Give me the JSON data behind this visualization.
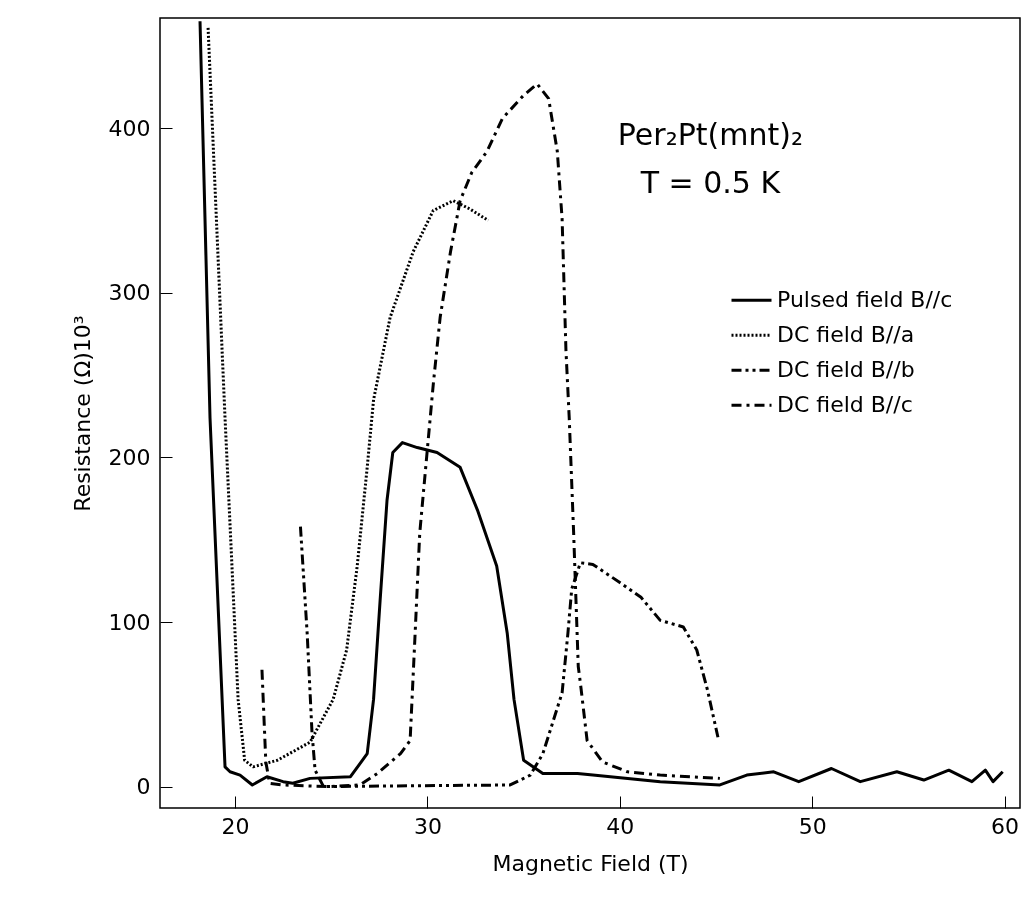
{
  "chart_data": {
    "type": "line",
    "xlabel": "Magnetic Field (T)",
    "ylabel": "Resistance (Ω)10³",
    "annotations": [
      "Per₂Pt(mnt)₂",
      "T = 0.5 K"
    ],
    "xlim": [
      16.1,
      60.8
    ],
    "xticks": [
      20,
      30,
      40,
      50,
      60
    ],
    "ylim": [
      -13,
      467
    ],
    "yticks": [
      0,
      100,
      200,
      300,
      400
    ],
    "legend": "top right",
    "grid": false,
    "series": [
      {
        "name": "Pulsed field B//c",
        "color": "#000000",
        "line_style": "solid",
        "x": [
          18.18,
          18.7,
          19.48,
          19.74,
          20.26,
          20.9,
          21.66,
          22.5,
          23.0,
          23.9,
          26.0,
          26.87,
          27.2,
          27.54,
          27.9,
          28.2,
          28.7,
          29.47,
          30.5,
          31.7,
          32.6,
          33.6,
          34.15,
          34.5,
          35.0,
          36.0,
          37.8,
          38.6,
          42.1,
          45.2,
          46.6,
          48.0,
          49.3,
          51.0,
          52.5,
          54.4,
          55.8,
          57.1,
          58.3,
          59.0,
          59.4,
          59.9
        ],
        "values": [
          465,
          224,
          12,
          9,
          7,
          1,
          6,
          3,
          2,
          5,
          6,
          20,
          53,
          113,
          174,
          203,
          209,
          206,
          203,
          194,
          168,
          134,
          93,
          53,
          16,
          8,
          8,
          7,
          3,
          1,
          7,
          9,
          3,
          11,
          3,
          9,
          4,
          10,
          3,
          10,
          3,
          9
        ]
      },
      {
        "name": "DC field B//a",
        "color": "#000000",
        "line_style": "dotted",
        "x": [
          18.6,
          19.48,
          19.84,
          20.16,
          20.5,
          20.94,
          22.2,
          23.9,
          25.1,
          25.8,
          26.35,
          26.87,
          27.2,
          28.06,
          29.26,
          30.3,
          31.34,
          32.2,
          33.16
        ],
        "values": [
          461,
          224,
          134,
          53,
          16,
          12,
          16,
          27,
          53,
          83,
          134,
          194,
          235,
          285,
          325,
          350,
          356,
          351,
          344
        ]
      },
      {
        "name": "DC field B//b",
        "color": "#000000",
        "line_style": "dashdotdot",
        "x": [
          23.4,
          23.75,
          24.0,
          24.16,
          24.6,
          34.3,
          35.35,
          36.0,
          37.0,
          37.3,
          37.5,
          37.95,
          38.6,
          40.0,
          41.1,
          42.1,
          43.3,
          44.0,
          44.55,
          45.1
        ],
        "values": [
          158,
          93,
          33,
          10,
          0,
          1,
          7,
          20,
          57,
          93,
          120,
          136,
          135,
          124,
          115,
          101,
          97,
          83,
          59,
          30
        ]
      },
      {
        "name": "DC field B//c",
        "color": "#000000",
        "line_style": "dashdot",
        "x": [
          21.4,
          21.6,
          21.8,
          22.5,
          24.8,
          26.5,
          27.4,
          28.6,
          29.1,
          29.36,
          29.6,
          30.3,
          30.66,
          31.2,
          31.7,
          32.3,
          33.1,
          33.9,
          35.0,
          35.7,
          36.3,
          36.75,
          37.0,
          37.2,
          37.37,
          37.6,
          37.84,
          37.95,
          38.3,
          39.1,
          40.4,
          42.1,
          45.2
        ],
        "values": [
          71,
          15,
          2,
          1,
          0,
          1,
          8,
          20,
          28,
          93,
          154,
          244,
          285,
          325,
          356,
          373,
          386,
          406,
          420,
          427,
          418,
          386,
          345,
          265,
          224,
          154,
          73,
          63,
          28,
          15,
          9,
          7,
          5
        ]
      }
    ]
  }
}
